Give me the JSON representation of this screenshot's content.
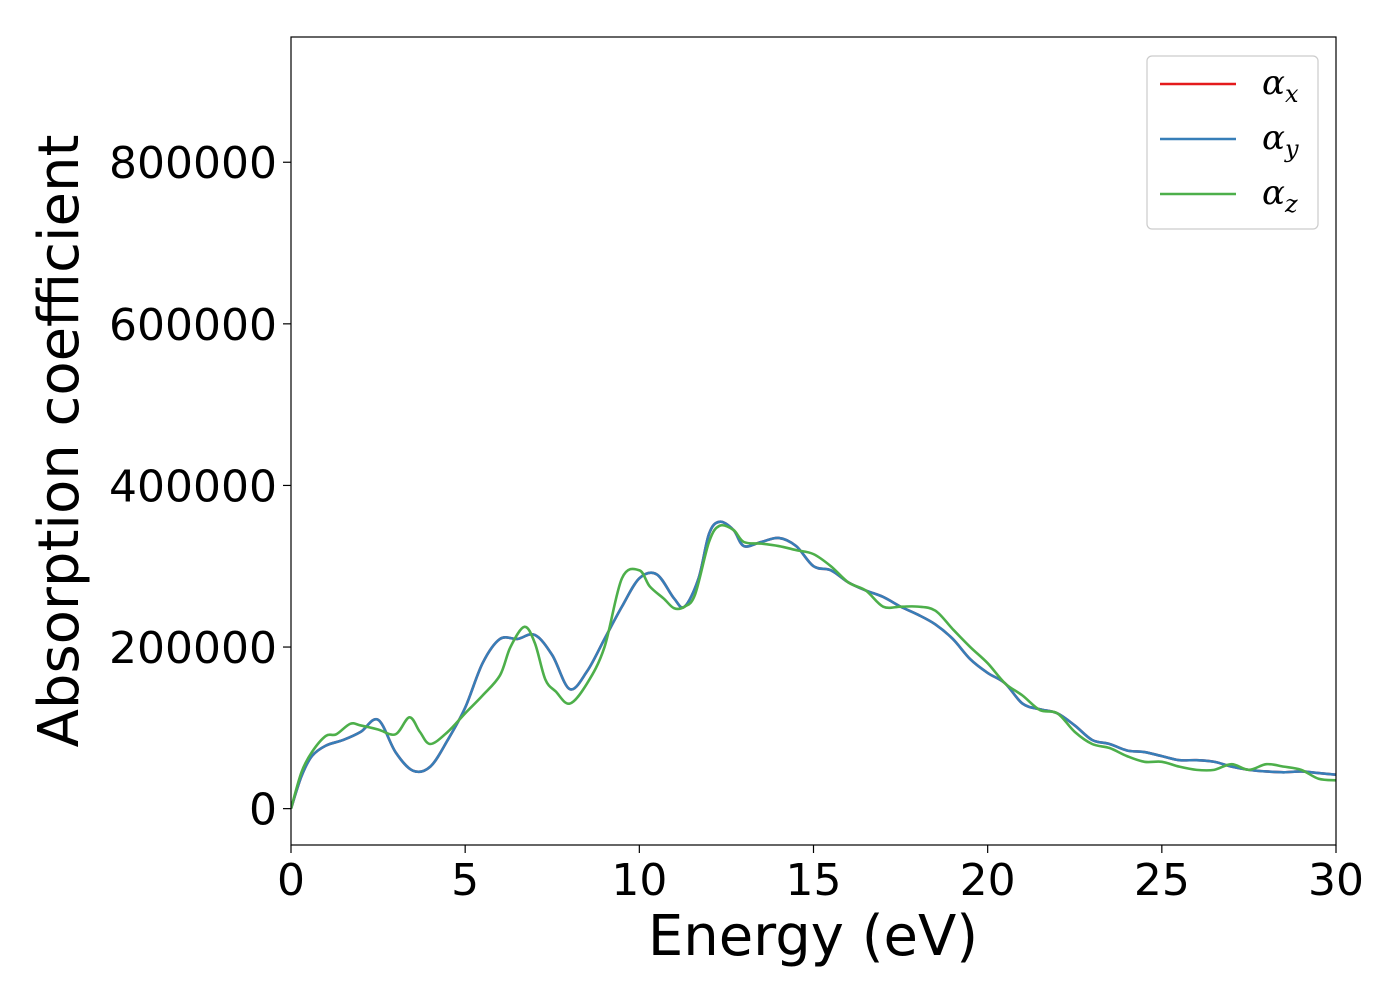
{
  "chart_data": {
    "type": "line",
    "title": "",
    "xlabel": "Energy (eV)",
    "ylabel": "Absorption coefficient",
    "xlim": [
      0,
      30
    ],
    "ylim": [
      -45000,
      955000
    ],
    "xticks": [
      0,
      5,
      10,
      15,
      20,
      25,
      30
    ],
    "yticks": [
      0,
      200000,
      400000,
      600000,
      800000
    ],
    "grid": false,
    "legend_position": "top-right",
    "series": [
      {
        "name": "αx",
        "symbol": "α",
        "subscript": "x",
        "color": "#e41a1c",
        "x": [
          0,
          0.3,
          0.6,
          1,
          1.5,
          2,
          2.5,
          3,
          3.5,
          4,
          4.5,
          5,
          5.5,
          6,
          6.5,
          7,
          7.5,
          8,
          8.5,
          9,
          9.5,
          10,
          10.5,
          11,
          11.3,
          11.7,
          12,
          12.3,
          12.7,
          13,
          13.5,
          14,
          14.5,
          15,
          15.5,
          16,
          16.5,
          17,
          17.5,
          18,
          18.5,
          19,
          19.5,
          20,
          20.5,
          21,
          21.5,
          22,
          22.5,
          23,
          23.5,
          24,
          24.5,
          25,
          25.5,
          26,
          26.5,
          27,
          27.5,
          28,
          28.5,
          29,
          29.5,
          30
        ],
        "y": [
          0,
          40000,
          65000,
          78000,
          85000,
          95000,
          110000,
          70000,
          47000,
          52000,
          85000,
          125000,
          180000,
          210000,
          210000,
          215000,
          190000,
          148000,
          170000,
          210000,
          250000,
          285000,
          290000,
          260000,
          250000,
          285000,
          340000,
          355000,
          345000,
          325000,
          330000,
          335000,
          325000,
          300000,
          295000,
          280000,
          270000,
          262000,
          250000,
          240000,
          228000,
          210000,
          185000,
          168000,
          155000,
          130000,
          123000,
          118000,
          103000,
          85000,
          80000,
          72000,
          70000,
          65000,
          60000,
          60000,
          58000,
          52000,
          48000,
          46000,
          45000,
          46000,
          44000,
          42000
        ]
      },
      {
        "name": "αy",
        "symbol": "α",
        "subscript": "y",
        "color": "#377eb8",
        "x": [
          0,
          0.3,
          0.6,
          1,
          1.5,
          2,
          2.5,
          3,
          3.5,
          4,
          4.5,
          5,
          5.5,
          6,
          6.5,
          7,
          7.5,
          8,
          8.5,
          9,
          9.5,
          10,
          10.5,
          11,
          11.3,
          11.7,
          12,
          12.3,
          12.7,
          13,
          13.5,
          14,
          14.5,
          15,
          15.5,
          16,
          16.5,
          17,
          17.5,
          18,
          18.5,
          19,
          19.5,
          20,
          20.5,
          21,
          21.5,
          22,
          22.5,
          23,
          23.5,
          24,
          24.5,
          25,
          25.5,
          26,
          26.5,
          27,
          27.5,
          28,
          28.5,
          29,
          29.5,
          30
        ],
        "y": [
          0,
          40000,
          65000,
          78000,
          85000,
          95000,
          110000,
          70000,
          47000,
          52000,
          85000,
          125000,
          180000,
          210000,
          210000,
          215000,
          190000,
          148000,
          170000,
          210000,
          250000,
          285000,
          290000,
          260000,
          250000,
          285000,
          340000,
          355000,
          345000,
          325000,
          330000,
          335000,
          325000,
          300000,
          295000,
          280000,
          270000,
          262000,
          250000,
          240000,
          228000,
          210000,
          185000,
          168000,
          155000,
          130000,
          123000,
          118000,
          103000,
          85000,
          80000,
          72000,
          70000,
          65000,
          60000,
          60000,
          58000,
          52000,
          48000,
          46000,
          45000,
          46000,
          44000,
          42000
        ]
      },
      {
        "name": "αz",
        "symbol": "α",
        "subscript": "z",
        "color": "#4daf4a",
        "x": [
          0,
          0.3,
          0.6,
          1,
          1.3,
          1.7,
          2,
          2.5,
          3,
          3.4,
          3.7,
          4,
          4.5,
          5,
          5.5,
          6,
          6.3,
          6.7,
          7,
          7.3,
          7.6,
          8,
          8.5,
          9,
          9.5,
          10,
          10.3,
          10.7,
          11,
          11.3,
          11.6,
          12,
          12.3,
          12.7,
          13,
          13.5,
          14,
          14.5,
          15,
          15.5,
          16,
          16.5,
          17,
          17.5,
          18,
          18.5,
          19,
          19.5,
          20,
          20.5,
          21,
          21.5,
          22,
          22.5,
          23,
          23.5,
          24,
          24.5,
          25,
          25.5,
          26,
          26.5,
          27,
          27.5,
          28,
          28.5,
          29,
          29.5,
          30
        ],
        "y": [
          0,
          45000,
          70000,
          90000,
          92000,
          105000,
          103000,
          98000,
          92000,
          113000,
          95000,
          80000,
          95000,
          118000,
          140000,
          165000,
          200000,
          225000,
          205000,
          160000,
          145000,
          130000,
          155000,
          200000,
          285000,
          295000,
          275000,
          260000,
          248000,
          250000,
          265000,
          330000,
          350000,
          345000,
          330000,
          328000,
          325000,
          320000,
          315000,
          300000,
          280000,
          270000,
          250000,
          250000,
          250000,
          245000,
          222000,
          200000,
          180000,
          155000,
          140000,
          122000,
          118000,
          95000,
          80000,
          75000,
          65000,
          58000,
          58000,
          52000,
          48000,
          48000,
          55000,
          48000,
          55000,
          52000,
          48000,
          37000,
          35000
        ]
      }
    ]
  }
}
